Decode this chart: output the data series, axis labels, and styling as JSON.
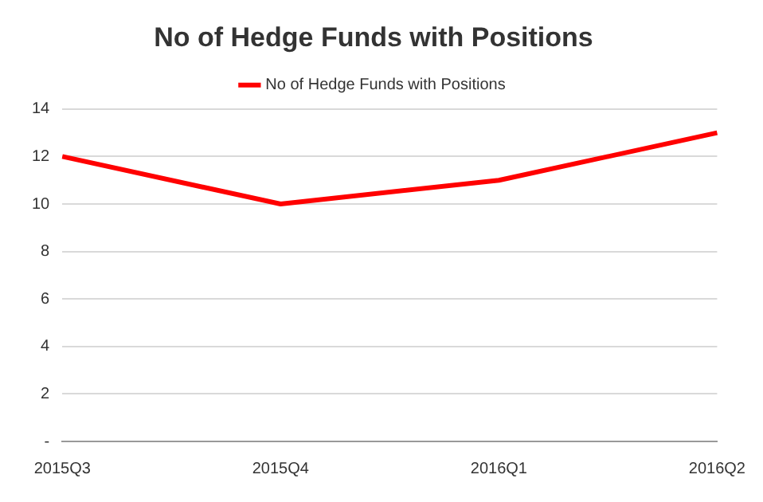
{
  "chart_data": {
    "type": "line",
    "title": "No of Hedge Funds with Positions",
    "categories": [
      "2015Q3",
      "2015Q4",
      "2016Q1",
      "2016Q2"
    ],
    "series": [
      {
        "name": "No of Hedge Funds with Positions",
        "color": "#ff0000",
        "values": [
          12,
          10,
          11,
          13
        ]
      }
    ],
    "ylim": [
      0,
      14
    ],
    "yticks": [
      {
        "value": 0,
        "label": "-"
      },
      2,
      4,
      6,
      8,
      10,
      12,
      14
    ],
    "grid": "y",
    "legend": "top",
    "marker": "none",
    "line_style": "solid"
  }
}
